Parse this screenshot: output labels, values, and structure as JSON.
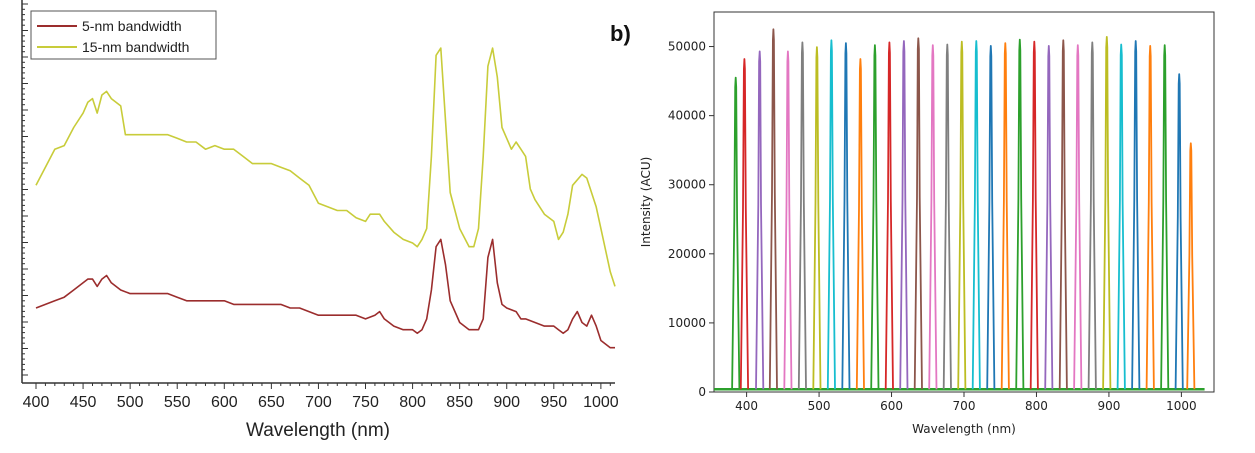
{
  "chart_data": [
    {
      "type": "line",
      "title": "",
      "xlabel": "Wavelength (nm)",
      "ylabel": "",
      "xlim": [
        390,
        1015
      ],
      "ylim": [
        0,
        1
      ],
      "x_ticks": [
        400,
        450,
        500,
        550,
        600,
        650,
        700,
        750,
        800,
        850,
        900,
        950,
        1000
      ],
      "legend_position": "top-left",
      "series": [
        {
          "name": "15-nm bandwidth",
          "color": "#c8cc3a",
          "points": [
            [
              400,
              0.52
            ],
            [
              410,
              0.57
            ],
            [
              420,
              0.62
            ],
            [
              430,
              0.63
            ],
            [
              440,
              0.68
            ],
            [
              450,
              0.72
            ],
            [
              455,
              0.75
            ],
            [
              460,
              0.76
            ],
            [
              465,
              0.72
            ],
            [
              470,
              0.77
            ],
            [
              475,
              0.78
            ],
            [
              480,
              0.76
            ],
            [
              485,
              0.75
            ],
            [
              490,
              0.74
            ],
            [
              495,
              0.66
            ],
            [
              500,
              0.66
            ],
            [
              520,
              0.66
            ],
            [
              540,
              0.66
            ],
            [
              550,
              0.65
            ],
            [
              560,
              0.64
            ],
            [
              570,
              0.64
            ],
            [
              580,
              0.62
            ],
            [
              590,
              0.63
            ],
            [
              600,
              0.62
            ],
            [
              610,
              0.62
            ],
            [
              620,
              0.6
            ],
            [
              630,
              0.58
            ],
            [
              640,
              0.58
            ],
            [
              650,
              0.58
            ],
            [
              660,
              0.57
            ],
            [
              670,
              0.56
            ],
            [
              680,
              0.54
            ],
            [
              690,
              0.52
            ],
            [
              700,
              0.47
            ],
            [
              710,
              0.46
            ],
            [
              720,
              0.45
            ],
            [
              730,
              0.45
            ],
            [
              740,
              0.43
            ],
            [
              750,
              0.42
            ],
            [
              755,
              0.44
            ],
            [
              765,
              0.44
            ],
            [
              770,
              0.42
            ],
            [
              780,
              0.39
            ],
            [
              790,
              0.37
            ],
            [
              800,
              0.36
            ],
            [
              805,
              0.35
            ],
            [
              810,
              0.37
            ],
            [
              815,
              0.4
            ],
            [
              820,
              0.6
            ],
            [
              825,
              0.88
            ],
            [
              830,
              0.9
            ],
            [
              835,
              0.7
            ],
            [
              840,
              0.5
            ],
            [
              850,
              0.4
            ],
            [
              860,
              0.35
            ],
            [
              865,
              0.35
            ],
            [
              870,
              0.4
            ],
            [
              875,
              0.6
            ],
            [
              880,
              0.85
            ],
            [
              885,
              0.9
            ],
            [
              890,
              0.82
            ],
            [
              895,
              0.68
            ],
            [
              900,
              0.65
            ],
            [
              905,
              0.62
            ],
            [
              910,
              0.64
            ],
            [
              915,
              0.62
            ],
            [
              920,
              0.6
            ],
            [
              925,
              0.51
            ],
            [
              930,
              0.48
            ],
            [
              940,
              0.44
            ],
            [
              950,
              0.42
            ],
            [
              955,
              0.37
            ],
            [
              960,
              0.39
            ],
            [
              965,
              0.44
            ],
            [
              970,
              0.52
            ],
            [
              980,
              0.55
            ],
            [
              985,
              0.54
            ],
            [
              990,
              0.5
            ],
            [
              995,
              0.46
            ],
            [
              1000,
              0.4
            ],
            [
              1010,
              0.28
            ],
            [
              1015,
              0.24
            ]
          ]
        },
        {
          "name": "5-nm bandwidth",
          "color": "#9b2d2d",
          "points": [
            [
              400,
              0.18
            ],
            [
              410,
              0.19
            ],
            [
              420,
              0.2
            ],
            [
              430,
              0.21
            ],
            [
              440,
              0.23
            ],
            [
              450,
              0.25
            ],
            [
              455,
              0.26
            ],
            [
              460,
              0.26
            ],
            [
              465,
              0.24
            ],
            [
              470,
              0.26
            ],
            [
              475,
              0.27
            ],
            [
              480,
              0.25
            ],
            [
              490,
              0.23
            ],
            [
              500,
              0.22
            ],
            [
              520,
              0.22
            ],
            [
              540,
              0.22
            ],
            [
              550,
              0.21
            ],
            [
              560,
              0.2
            ],
            [
              570,
              0.2
            ],
            [
              580,
              0.2
            ],
            [
              590,
              0.2
            ],
            [
              600,
              0.2
            ],
            [
              610,
              0.19
            ],
            [
              620,
              0.19
            ],
            [
              630,
              0.19
            ],
            [
              640,
              0.19
            ],
            [
              650,
              0.19
            ],
            [
              660,
              0.19
            ],
            [
              670,
              0.18
            ],
            [
              680,
              0.18
            ],
            [
              690,
              0.17
            ],
            [
              700,
              0.16
            ],
            [
              710,
              0.16
            ],
            [
              720,
              0.16
            ],
            [
              730,
              0.16
            ],
            [
              740,
              0.16
            ],
            [
              750,
              0.15
            ],
            [
              760,
              0.16
            ],
            [
              765,
              0.17
            ],
            [
              770,
              0.15
            ],
            [
              780,
              0.13
            ],
            [
              790,
              0.12
            ],
            [
              800,
              0.12
            ],
            [
              805,
              0.11
            ],
            [
              810,
              0.12
            ],
            [
              815,
              0.15
            ],
            [
              820,
              0.23
            ],
            [
              825,
              0.35
            ],
            [
              830,
              0.37
            ],
            [
              835,
              0.3
            ],
            [
              840,
              0.2
            ],
            [
              850,
              0.14
            ],
            [
              860,
              0.12
            ],
            [
              870,
              0.12
            ],
            [
              875,
              0.15
            ],
            [
              880,
              0.32
            ],
            [
              885,
              0.37
            ],
            [
              890,
              0.25
            ],
            [
              895,
              0.19
            ],
            [
              900,
              0.18
            ],
            [
              910,
              0.17
            ],
            [
              915,
              0.15
            ],
            [
              920,
              0.15
            ],
            [
              930,
              0.14
            ],
            [
              940,
              0.13
            ],
            [
              950,
              0.13
            ],
            [
              955,
              0.12
            ],
            [
              960,
              0.11
            ],
            [
              965,
              0.12
            ],
            [
              970,
              0.15
            ],
            [
              975,
              0.17
            ],
            [
              980,
              0.14
            ],
            [
              985,
              0.13
            ],
            [
              990,
              0.16
            ],
            [
              995,
              0.13
            ],
            [
              1000,
              0.09
            ],
            [
              1010,
              0.07
            ],
            [
              1015,
              0.07
            ]
          ]
        }
      ]
    },
    {
      "type": "line",
      "panel_label": "b)",
      "title": "",
      "xlabel": "Wavelength (nm)",
      "ylabel": "Intensity (ACU)",
      "xlim": [
        355,
        1045
      ],
      "ylim": [
        0,
        55000
      ],
      "x_ticks": [
        400,
        500,
        600,
        700,
        800,
        900,
        1000
      ],
      "y_ticks": [
        0,
        10000,
        20000,
        30000,
        40000,
        50000
      ],
      "peak_width_nm": 7,
      "baseline": 400,
      "series": [
        {
          "center": 385,
          "peak": 45500,
          "color": "#2ca02c"
        },
        {
          "center": 397,
          "peak": 48200,
          "color": "#d62728"
        },
        {
          "center": 418,
          "peak": 49300,
          "color": "#9467bd"
        },
        {
          "center": 437,
          "peak": 52500,
          "color": "#8c564b"
        },
        {
          "center": 457,
          "peak": 49300,
          "color": "#e377c2"
        },
        {
          "center": 477,
          "peak": 50600,
          "color": "#7f7f7f"
        },
        {
          "center": 497,
          "peak": 49900,
          "color": "#bcbd22"
        },
        {
          "center": 517,
          "peak": 50900,
          "color": "#17becf"
        },
        {
          "center": 537,
          "peak": 50500,
          "color": "#1f77b4"
        },
        {
          "center": 557,
          "peak": 48200,
          "color": "#ff7f0e"
        },
        {
          "center": 577,
          "peak": 50200,
          "color": "#2ca02c"
        },
        {
          "center": 597,
          "peak": 50600,
          "color": "#d62728"
        },
        {
          "center": 617,
          "peak": 50800,
          "color": "#9467bd"
        },
        {
          "center": 637,
          "peak": 51200,
          "color": "#8c564b"
        },
        {
          "center": 657,
          "peak": 50200,
          "color": "#e377c2"
        },
        {
          "center": 677,
          "peak": 50300,
          "color": "#7f7f7f"
        },
        {
          "center": 697,
          "peak": 50700,
          "color": "#bcbd22"
        },
        {
          "center": 717,
          "peak": 50800,
          "color": "#17becf"
        },
        {
          "center": 737,
          "peak": 50100,
          "color": "#1f77b4"
        },
        {
          "center": 757,
          "peak": 50500,
          "color": "#ff7f0e"
        },
        {
          "center": 777,
          "peak": 51000,
          "color": "#2ca02c"
        },
        {
          "center": 797,
          "peak": 50700,
          "color": "#d62728"
        },
        {
          "center": 817,
          "peak": 50100,
          "color": "#9467bd"
        },
        {
          "center": 837,
          "peak": 50900,
          "color": "#8c564b"
        },
        {
          "center": 857,
          "peak": 50200,
          "color": "#e377c2"
        },
        {
          "center": 877,
          "peak": 50600,
          "color": "#7f7f7f"
        },
        {
          "center": 897,
          "peak": 51400,
          "color": "#bcbd22"
        },
        {
          "center": 917,
          "peak": 50300,
          "color": "#17becf"
        },
        {
          "center": 937,
          "peak": 50800,
          "color": "#1f77b4"
        },
        {
          "center": 957,
          "peak": 50100,
          "color": "#ff7f0e"
        },
        {
          "center": 977,
          "peak": 50200,
          "color": "#2ca02c"
        },
        {
          "center": 997,
          "peak": 46000,
          "color": "#1f77b4"
        },
        {
          "center": 1013,
          "peak": 36000,
          "color": "#ff7f0e"
        }
      ]
    }
  ]
}
